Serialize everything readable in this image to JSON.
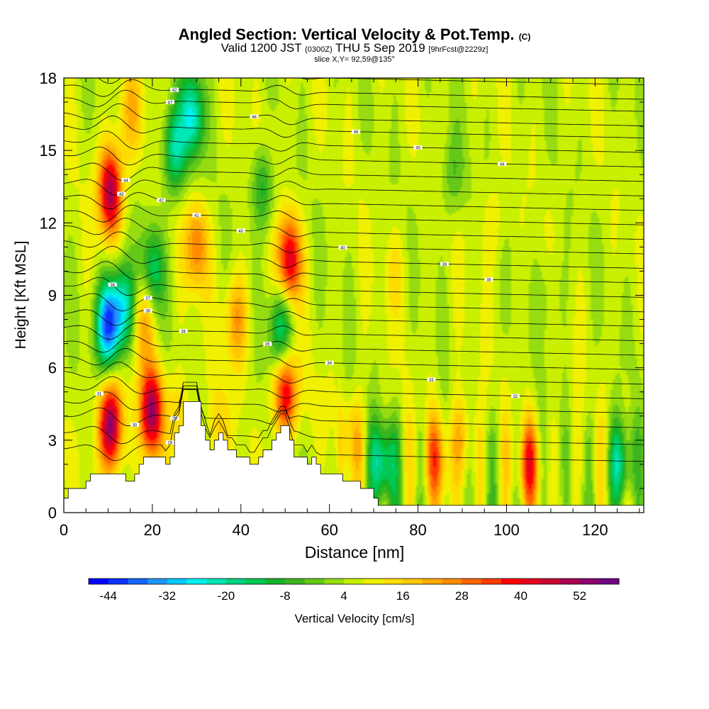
{
  "title": {
    "main": "Angled Section: Vertical Velocity & Pot.Temp.",
    "main_unit": "(C)",
    "valid_prefix": "Valid 1200 JST",
    "valid_utc": "(0300Z)",
    "valid_date": "THU 5 Sep 2019",
    "forecast": "[9hrFcst@2229z]",
    "slice": "slice X,Y= 92,59@135°"
  },
  "chart_data": {
    "type": "heatmap",
    "xlabel": "Distance [nm]",
    "ylabel": "Height [Kft MSL]",
    "xlim": [
      0,
      131
    ],
    "ylim": [
      0,
      18
    ],
    "x_ticks": [
      0,
      20,
      40,
      60,
      80,
      100,
      120
    ],
    "y_ticks": [
      0,
      3,
      6,
      9,
      12,
      15,
      18
    ],
    "colorbar": {
      "label": "Vertical Velocity [cm/s]",
      "tick_labels": [
        "-44",
        "-32",
        "-20",
        "-8",
        "4",
        "16",
        "28",
        "40",
        "52"
      ],
      "min": -48,
      "max": 60,
      "step": 4,
      "colors": [
        "#0000ff",
        "#0a32ff",
        "#1464ff",
        "#1e96ff",
        "#00c8ff",
        "#00f0f0",
        "#00e6b4",
        "#00d282",
        "#00c850",
        "#14b428",
        "#3cb41e",
        "#64c818",
        "#96dc10",
        "#c8f000",
        "#f0f000",
        "#ffdc00",
        "#ffc800",
        "#ffaa00",
        "#ff8c00",
        "#ff6400",
        "#ff3c00",
        "#ff0000",
        "#e6001e",
        "#c80032",
        "#aa0050",
        "#8c006e",
        "#6e0082"
      ]
    },
    "background_value": 6,
    "velocity_features": [
      {
        "x": 10.5,
        "y": 13.3,
        "value": 52
      },
      {
        "x": 10.5,
        "y": 3.6,
        "value": 56
      },
      {
        "x": 19.8,
        "y": 4.2,
        "value": 52
      },
      {
        "x": 10.0,
        "y": 7.8,
        "value": -40
      },
      {
        "x": 29.0,
        "y": 16.5,
        "value": -24
      },
      {
        "x": 25.0,
        "y": 15.0,
        "value": -20
      },
      {
        "x": 20.0,
        "y": 10.0,
        "value": -16
      },
      {
        "x": 13.5,
        "y": 8.5,
        "value": -24
      },
      {
        "x": 15.0,
        "y": 16.5,
        "value": 20
      },
      {
        "x": 18.0,
        "y": 8.0,
        "value": 24
      },
      {
        "x": 30.0,
        "y": 11.0,
        "value": 28
      },
      {
        "x": 39.0,
        "y": 8.0,
        "value": 24
      },
      {
        "x": 47.0,
        "y": 15.0,
        "value": 12
      },
      {
        "x": 51.0,
        "y": 10.5,
        "value": 44
      },
      {
        "x": 50.0,
        "y": 5.0,
        "value": 44
      },
      {
        "x": 49.0,
        "y": 7.5,
        "value": -20
      },
      {
        "x": 45.0,
        "y": 13.5,
        "value": -12
      },
      {
        "x": 72.0,
        "y": 2.0,
        "value": -24
      },
      {
        "x": 126.0,
        "y": 2.0,
        "value": -20
      },
      {
        "x": 84.0,
        "y": 2.2,
        "value": 28
      },
      {
        "x": 105.0,
        "y": 2.0,
        "value": 32
      },
      {
        "x": 90.0,
        "y": 3.0,
        "value": 20
      },
      {
        "x": 65.0,
        "y": 3.0,
        "value": 20
      },
      {
        "x": 97.0,
        "y": 12.0,
        "value": 12
      },
      {
        "x": 75.0,
        "y": 10.0,
        "value": 12
      },
      {
        "x": 88.0,
        "y": 14.0,
        "value": -4
      },
      {
        "x": 110.0,
        "y": 9.0,
        "value": 0
      },
      {
        "x": 26.0,
        "y": 4.0,
        "value": 16
      },
      {
        "x": 35.0,
        "y": 3.5,
        "value": 16
      },
      {
        "x": 57.0,
        "y": 4.5,
        "value": 8
      }
    ],
    "terrain": [
      {
        "x": 0,
        "y": 0.6
      },
      {
        "x": 1,
        "y": 1.0
      },
      {
        "x": 5,
        "y": 1.3
      },
      {
        "x": 6,
        "y": 1.6
      },
      {
        "x": 9,
        "y": 1.6
      },
      {
        "x": 13,
        "y": 1.6
      },
      {
        "x": 14,
        "y": 1.3
      },
      {
        "x": 16,
        "y": 1.6
      },
      {
        "x": 17,
        "y": 2.0
      },
      {
        "x": 18,
        "y": 2.3
      },
      {
        "x": 22,
        "y": 2.3
      },
      {
        "x": 23,
        "y": 2.0
      },
      {
        "x": 24,
        "y": 2.3
      },
      {
        "x": 25,
        "y": 3.3
      },
      {
        "x": 26,
        "y": 3.6
      },
      {
        "x": 27,
        "y": 4.6
      },
      {
        "x": 30,
        "y": 4.6
      },
      {
        "x": 31,
        "y": 3.6
      },
      {
        "x": 32,
        "y": 3.0
      },
      {
        "x": 33,
        "y": 2.6
      },
      {
        "x": 34,
        "y": 3.0
      },
      {
        "x": 35,
        "y": 3.3
      },
      {
        "x": 36,
        "y": 3.0
      },
      {
        "x": 37,
        "y": 2.6
      },
      {
        "x": 38,
        "y": 2.6
      },
      {
        "x": 39,
        "y": 2.3
      },
      {
        "x": 42,
        "y": 2.0
      },
      {
        "x": 44,
        "y": 2.3
      },
      {
        "x": 45,
        "y": 2.6
      },
      {
        "x": 46,
        "y": 2.6
      },
      {
        "x": 47,
        "y": 3.0
      },
      {
        "x": 48,
        "y": 3.3
      },
      {
        "x": 49,
        "y": 3.6
      },
      {
        "x": 50,
        "y": 3.6
      },
      {
        "x": 51,
        "y": 3.0
      },
      {
        "x": 52,
        "y": 2.3
      },
      {
        "x": 55,
        "y": 2.0
      },
      {
        "x": 56,
        "y": 2.3
      },
      {
        "x": 57,
        "y": 2.0
      },
      {
        "x": 58,
        "y": 1.6
      },
      {
        "x": 62,
        "y": 1.6
      },
      {
        "x": 63,
        "y": 1.3
      },
      {
        "x": 66,
        "y": 1.3
      },
      {
        "x": 67,
        "y": 1.0
      },
      {
        "x": 70,
        "y": 0.6
      },
      {
        "x": 71,
        "y": 0.3
      },
      {
        "x": 131,
        "y": 0.3
      }
    ],
    "theta_contour_levels": [
      {
        "label": "42",
        "height": 18.5
      },
      {
        "label": "42",
        "height": 18.0
      },
      {
        "label": "42",
        "height": 17.4
      },
      {
        "label": "47",
        "height": 16.9
      },
      {
        "label": "46",
        "height": 16.3
      },
      {
        "label": "46",
        "height": 15.8
      },
      {
        "label": "45",
        "height": 15.2
      },
      {
        "label": "44",
        "height": 14.6
      },
      {
        "label": "44",
        "height": 14.0
      },
      {
        "label": "43",
        "height": 13.4
      },
      {
        "label": "42",
        "height": 12.8
      },
      {
        "label": "41",
        "height": 12.2
      },
      {
        "label": "40",
        "height": 11.6
      },
      {
        "label": "40",
        "height": 11.0
      },
      {
        "label": "39",
        "height": 10.4
      },
      {
        "label": "38",
        "height": 9.8
      },
      {
        "label": "38",
        "height": 9.2
      },
      {
        "label": "37",
        "height": 8.6
      },
      {
        "label": "36",
        "height": 8.0
      },
      {
        "label": "36",
        "height": 7.4
      },
      {
        "label": "35",
        "height": 6.8
      },
      {
        "label": "34",
        "height": 6.2
      },
      {
        "label": "33",
        "height": 5.6
      },
      {
        "label": "32",
        "height": 5.0
      },
      {
        "label": "31",
        "height": 4.4
      },
      {
        "label": "30",
        "height": 3.8
      },
      {
        "label": "29",
        "height": 3.1
      },
      {
        "label": "28",
        "height": 2.4
      }
    ]
  }
}
